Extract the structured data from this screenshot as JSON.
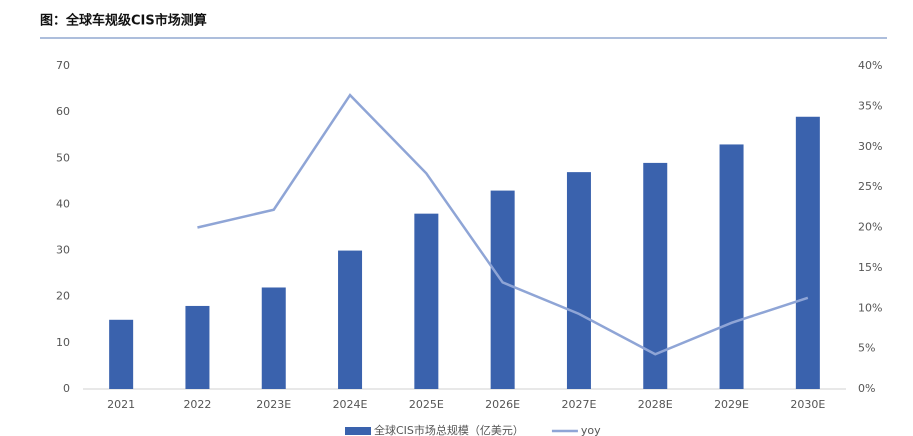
{
  "chart_data": {
    "type": "bar",
    "title": "图：全球车规级CIS市场测算",
    "categories": [
      "2021",
      "2022",
      "2023E",
      "2024E",
      "2025E",
      "2026E",
      "2027E",
      "2028E",
      "2029E",
      "2030E"
    ],
    "series": [
      {
        "name": "全球CIS市场总规模（亿美元）",
        "type": "bar",
        "color": "#3a62ad",
        "values": [
          15,
          18,
          22,
          30,
          38,
          43,
          47,
          49,
          53,
          59
        ]
      },
      {
        "name": "yoy",
        "type": "line",
        "axis": "y2",
        "color": "#8fa5d6",
        "values": [
          null,
          20,
          22.2,
          36.4,
          26.7,
          13.2,
          9.3,
          4.3,
          8.2,
          11.3
        ]
      }
    ],
    "ylim": [
      0,
      70
    ],
    "yticks": [
      0,
      10,
      20,
      30,
      40,
      50,
      60,
      70
    ],
    "y2lim": [
      0,
      40
    ],
    "y2ticks": [
      {
        "value": 0,
        "label": "0%"
      },
      {
        "value": 5,
        "label": "5%"
      },
      {
        "value": 10,
        "label": "10%"
      },
      {
        "value": 15,
        "label": "15%"
      },
      {
        "value": 20,
        "label": "20%"
      },
      {
        "value": 25,
        "label": "25%"
      },
      {
        "value": 30,
        "label": "30%"
      },
      {
        "value": 35,
        "label": "35%"
      },
      {
        "value": 40,
        "label": "40%"
      }
    ],
    "legend": "bottom"
  }
}
